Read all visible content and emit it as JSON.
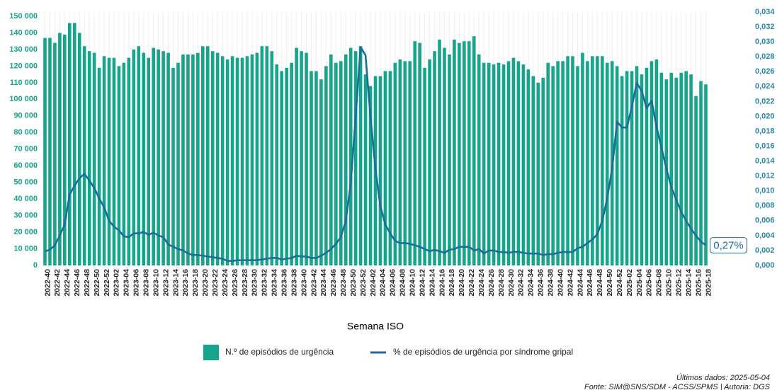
{
  "chart_data": {
    "type": "bar",
    "xlabel": "Semana ISO",
    "categories": [
      "2022-40",
      null,
      "2022-42",
      null,
      "2022-44",
      null,
      "2022-46",
      null,
      "2022-48",
      null,
      "2022-50",
      null,
      "2022-52",
      null,
      "2023-02",
      null,
      "2023-04",
      null,
      "2023-06",
      null,
      "2023-08",
      null,
      "2023-10",
      null,
      "2023-12",
      null,
      "2023-14",
      null,
      "2023-16",
      null,
      "2023-18",
      null,
      "2023-20",
      null,
      "2023-22",
      null,
      "2023-24",
      null,
      "2023-26",
      null,
      "2023-28",
      null,
      "2023-30",
      null,
      "2023-32",
      null,
      "2023-34",
      null,
      "2023-36",
      null,
      "2023-38",
      null,
      "2023-40",
      null,
      "2023-42",
      null,
      "2023-44",
      null,
      "2023-46",
      null,
      "2023-48",
      null,
      "2023-50",
      null,
      "2023-52",
      null,
      "2024-02",
      null,
      "2024-04",
      null,
      "2024-06",
      null,
      "2024-08",
      null,
      "2024-10",
      null,
      "2024-12",
      null,
      "2024-14",
      null,
      "2024-16",
      null,
      "2024-18",
      null,
      "2024-20",
      null,
      "2024-22",
      null,
      "2024-24",
      null,
      "2024-26",
      null,
      "2024-28",
      null,
      "2024-30",
      null,
      "2024-32",
      null,
      "2024-34",
      null,
      "2024-36",
      null,
      "2024-38",
      null,
      "2024-40",
      null,
      "2024-42",
      null,
      "2024-44",
      null,
      "2024-46",
      null,
      "2024-48",
      null,
      "2024-50",
      null,
      "2024-52",
      null,
      "2025-02",
      null,
      "2025-04",
      null,
      "2025-06",
      null,
      "2025-08",
      null,
      "2025-10",
      null,
      "2025-12",
      null,
      "2025-14",
      null,
      "2025-16",
      null,
      "2025-18"
    ],
    "series": [
      {
        "name": "N.º de episódios de urgência",
        "type": "bar",
        "color": "#16a58c",
        "values": [
          137000,
          137000,
          134000,
          140000,
          139000,
          146000,
          146000,
          140000,
          132000,
          129000,
          128000,
          119000,
          126000,
          125000,
          125000,
          120000,
          122000,
          125000,
          130000,
          132000,
          128000,
          125000,
          131000,
          130000,
          129000,
          128000,
          119000,
          122000,
          127000,
          127000,
          127000,
          128000,
          132000,
          132000,
          129000,
          128000,
          126000,
          124000,
          126000,
          125000,
          125000,
          126000,
          127000,
          128000,
          132000,
          132000,
          129000,
          121000,
          117000,
          119000,
          122000,
          131000,
          129000,
          128000,
          117000,
          117000,
          112000,
          120000,
          127000,
          122000,
          123000,
          127000,
          131000,
          129000,
          132000,
          115000,
          108000,
          114000,
          114000,
          117000,
          117000,
          122000,
          124000,
          123000,
          123000,
          135000,
          134000,
          119000,
          124000,
          129000,
          136000,
          131000,
          127000,
          136000,
          134000,
          135000,
          135000,
          138000,
          127000,
          122000,
          122000,
          121000,
          122000,
          121000,
          123000,
          125000,
          123000,
          121000,
          118000,
          114000,
          110000,
          113000,
          122000,
          120000,
          123000,
          123000,
          126000,
          126000,
          120000,
          128000,
          123000,
          126000,
          126000,
          126000,
          122000,
          123000,
          120000,
          114000,
          117000,
          117000,
          120000,
          115000,
          119000,
          123000,
          124000,
          116000,
          112000,
          116000,
          113000,
          116000,
          117000,
          115000,
          102000,
          111000,
          109000
        ]
      },
      {
        "name": "% de episódios de urgência por síndrome gripal",
        "type": "line",
        "axis": "y2",
        "color": "#1c6b9c",
        "values": [
          0.0019,
          0.0021,
          0.0027,
          0.004,
          0.0055,
          0.0095,
          0.0107,
          0.0117,
          0.0123,
          0.0114,
          0.0104,
          0.009,
          0.0078,
          0.006,
          0.0052,
          0.0047,
          0.0039,
          0.0038,
          0.0043,
          0.0043,
          0.0045,
          0.0041,
          0.0044,
          0.004,
          0.0038,
          0.0028,
          0.0025,
          0.0022,
          0.002,
          0.0016,
          0.0014,
          0.0014,
          0.0013,
          0.0012,
          0.0011,
          0.001,
          0.0009,
          0.0006,
          0.0006,
          0.0007,
          0.0007,
          0.0007,
          0.0007,
          0.0007,
          0.0008,
          0.0009,
          0.001,
          0.001,
          0.0008,
          0.0009,
          0.001,
          0.0013,
          0.0012,
          0.0012,
          0.001,
          0.001,
          0.0013,
          0.0017,
          0.0022,
          0.0029,
          0.0038,
          0.006,
          0.011,
          0.02,
          0.0293,
          0.0282,
          0.02,
          0.013,
          0.008,
          0.0055,
          0.0043,
          0.0033,
          0.003,
          0.003,
          0.0029,
          0.0027,
          0.0025,
          0.0022,
          0.0019,
          0.0021,
          0.0019,
          0.0017,
          0.0021,
          0.0022,
          0.0025,
          0.0025,
          0.0025,
          0.002,
          0.0022,
          0.0016,
          0.002,
          0.002,
          0.0018,
          0.0018,
          0.0017,
          0.0018,
          0.0018,
          0.0017,
          0.0016,
          0.0016,
          0.0016,
          0.0014,
          0.0015,
          0.0015,
          0.0017,
          0.0018,
          0.0018,
          0.0018,
          0.0023,
          0.0025,
          0.003,
          0.0035,
          0.0042,
          0.006,
          0.009,
          0.013,
          0.0193,
          0.0185,
          0.0185,
          0.0213,
          0.0245,
          0.0234,
          0.0211,
          0.0221,
          0.0186,
          0.0158,
          0.013,
          0.0105,
          0.0088,
          0.0072,
          0.006,
          0.0049,
          0.004,
          0.0032,
          0.0027
        ],
        "value_labels": [
          null,
          null,
          null,
          null,
          null,
          null,
          null,
          null,
          null,
          null,
          null,
          null,
          null,
          null,
          null,
          null,
          null,
          null,
          null,
          null,
          null,
          null,
          null,
          null,
          null,
          null,
          null,
          null,
          null,
          null,
          null,
          null,
          null,
          null,
          null,
          null,
          null,
          null,
          null,
          null,
          null,
          null,
          null,
          null,
          null,
          null,
          null,
          null,
          null,
          null,
          null,
          null,
          null,
          null,
          null,
          null,
          null,
          null,
          null,
          null,
          null,
          null,
          null,
          null,
          null,
          null,
          null,
          null,
          null,
          null,
          null,
          null,
          null,
          null,
          null,
          null,
          null,
          null,
          null,
          null,
          null,
          null,
          null,
          null,
          null,
          null,
          null,
          null,
          null,
          null,
          null,
          null,
          null,
          null,
          null,
          null,
          null,
          null,
          null,
          null,
          null,
          null,
          null,
          null,
          null,
          null,
          null,
          null,
          null,
          null,
          null,
          null,
          null,
          null,
          null,
          null,
          null,
          null,
          null,
          null,
          null,
          null,
          null,
          null,
          null,
          null,
          null,
          null,
          null,
          null,
          null,
          null,
          null,
          null,
          "0,27%"
        ]
      }
    ],
    "ylim": [
      0,
      150000
    ],
    "yticks": [
      0,
      {
        "value": 10000,
        "label": "10 000"
      },
      {
        "value": 20000,
        "label": "20 000"
      },
      {
        "value": 30000,
        "label": "30 000"
      },
      {
        "value": 40000,
        "label": "40 000"
      },
      {
        "value": 50000,
        "label": "50 000"
      },
      {
        "value": 60000,
        "label": "60 000"
      },
      {
        "value": 70000,
        "label": "70 000"
      },
      {
        "value": 80000,
        "label": "80 000"
      },
      {
        "value": 90000,
        "label": "90 000"
      },
      {
        "value": 100000,
        "label": "100 000"
      },
      {
        "value": 110000,
        "label": "110 000"
      },
      {
        "value": 120000,
        "label": "120 000"
      },
      {
        "value": 130000,
        "label": "130 000"
      },
      {
        "value": 140000,
        "label": "140 000"
      },
      {
        "value": 150000,
        "label": "150 000"
      }
    ],
    "y2lim": [
      0,
      0.034
    ],
    "y2ticks": [
      {
        "value": 0,
        "label": "0,000"
      },
      {
        "value": 0.002,
        "label": "0,002"
      },
      {
        "value": 0.004,
        "label": "0,004"
      },
      {
        "value": 0.006,
        "label": "0,006"
      },
      {
        "value": 0.008,
        "label": "0,008"
      },
      {
        "value": 0.01,
        "label": "0,010"
      },
      {
        "value": 0.012,
        "label": "0,012"
      },
      {
        "value": 0.014,
        "label": "0,014"
      },
      {
        "value": 0.016,
        "label": "0,016"
      },
      {
        "value": 0.018,
        "label": "0,018"
      },
      {
        "value": 0.02,
        "label": "0,020"
      },
      {
        "value": 0.022,
        "label": "0,022"
      },
      {
        "value": 0.024,
        "label": "0,024"
      },
      {
        "value": 0.026,
        "label": "0,026"
      },
      {
        "value": 0.028,
        "label": "0,028"
      },
      {
        "value": 0.03,
        "label": "0,030"
      },
      {
        "value": 0.032,
        "label": "0,032"
      },
      {
        "value": 0.034,
        "label": "0,034"
      }
    ],
    "legend": "bottom",
    "footnotes": [
      "Últimos dados: 2025-05-04",
      "Fonte: SIM@SNS/SDM - ACSS/SPMS | Autoria: DGS"
    ]
  }
}
